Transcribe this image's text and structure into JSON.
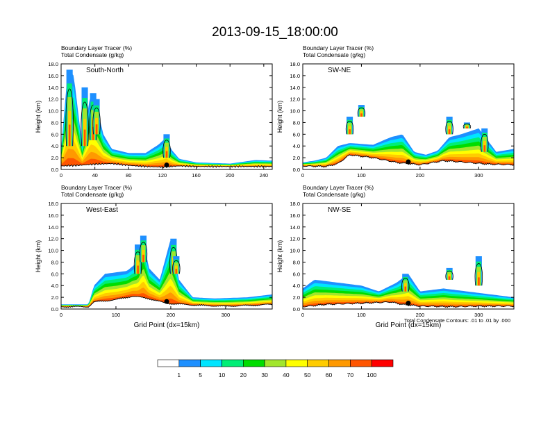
{
  "page_title": "2013-09-15_18:00:00",
  "colorbar": {
    "colors": [
      "#ffffff",
      "#1e90ff",
      "#00e5ff",
      "#00ee76",
      "#00dd00",
      "#a2e62c",
      "#ffff00",
      "#ffcc00",
      "#ff9900",
      "#ff5500",
      "#ff0000"
    ],
    "labels": [
      "1",
      "5",
      "10",
      "20",
      "30",
      "40",
      "50",
      "60",
      "70",
      "100"
    ]
  },
  "footnote": "Total Condensate Contours: .01 to .01 by .000",
  "chart_data": [
    {
      "type": "heatmap",
      "panel_label": "South-North",
      "header_line1": "Boundary Layer Tracer",
      "header_unit1": "(%)",
      "header_line2": "Total Condensate",
      "header_unit2": "(g/kg)",
      "ylabel": "Height (km)",
      "xlabel": "",
      "xlim": [
        0,
        250
      ],
      "ylim": [
        0,
        18
      ],
      "xticks": [
        "0",
        "40",
        "80",
        "120",
        "160",
        "200",
        "240"
      ],
      "yticks": [
        "0.0",
        "2.0",
        "4.0",
        "6.0",
        "8.0",
        "10.0",
        "12.0",
        "14.0",
        "16.0",
        "18.0"
      ],
      "terrain_km": [
        [
          0,
          0.6
        ],
        [
          20,
          0.7
        ],
        [
          40,
          0.9
        ],
        [
          60,
          1.0
        ],
        [
          80,
          0.7
        ],
        [
          100,
          0.5
        ],
        [
          120,
          0.4
        ],
        [
          140,
          0.6
        ],
        [
          160,
          0.5
        ],
        [
          200,
          0.5
        ],
        [
          250,
          0.5
        ]
      ],
      "top_colored_km": [
        [
          0,
          3.5
        ],
        [
          8,
          17
        ],
        [
          15,
          16
        ],
        [
          25,
          4
        ],
        [
          35,
          13
        ],
        [
          40,
          12
        ],
        [
          50,
          6
        ],
        [
          60,
          3.5
        ],
        [
          80,
          2.8
        ],
        [
          100,
          2.8
        ],
        [
          115,
          4.2
        ],
        [
          125,
          5.5
        ],
        [
          130,
          3.5
        ],
        [
          140,
          1.8
        ],
        [
          160,
          1.2
        ],
        [
          200,
          1.0
        ],
        [
          230,
          1.6
        ],
        [
          250,
          1.5
        ]
      ],
      "plumes": [
        [
          10,
          4,
          17
        ],
        [
          28,
          4,
          14
        ],
        [
          38,
          5,
          13
        ],
        [
          42,
          6,
          12
        ],
        [
          125,
          2,
          6
        ]
      ]
    },
    {
      "type": "heatmap",
      "panel_label": "SW-NE",
      "header_line1": "Boundary Layer Tracer",
      "header_unit1": "(%)",
      "header_line2": "Total Condensate",
      "header_unit2": "(g/kg)",
      "ylabel": "Height (km)",
      "xlabel": "",
      "xlim": [
        0,
        360
      ],
      "ylim": [
        0,
        18
      ],
      "xticks": [
        "0",
        "100",
        "200",
        "300"
      ],
      "yticks": [
        "0.0",
        "2.0",
        "4.0",
        "6.0",
        "8.0",
        "10.0",
        "12.0",
        "14.0",
        "16.0",
        "18.0"
      ],
      "terrain_km": [
        [
          0,
          0.6
        ],
        [
          40,
          0.5
        ],
        [
          60,
          1.0
        ],
        [
          80,
          2.5
        ],
        [
          120,
          2.0
        ],
        [
          160,
          1.2
        ],
        [
          200,
          0.8
        ],
        [
          240,
          1.5
        ],
        [
          280,
          1.2
        ],
        [
          320,
          0.9
        ],
        [
          360,
          0.8
        ]
      ],
      "top_colored_km": [
        [
          0,
          1.2
        ],
        [
          20,
          1.5
        ],
        [
          40,
          2.0
        ],
        [
          60,
          4.0
        ],
        [
          80,
          4.5
        ],
        [
          120,
          4.2
        ],
        [
          150,
          5.5
        ],
        [
          170,
          6.0
        ],
        [
          190,
          3.0
        ],
        [
          210,
          2.5
        ],
        [
          230,
          3.2
        ],
        [
          250,
          5.5
        ],
        [
          270,
          6.0
        ],
        [
          300,
          7.0
        ],
        [
          330,
          3.0
        ],
        [
          360,
          3.5
        ]
      ],
      "plumes": [
        [
          80,
          6,
          9
        ],
        [
          100,
          9,
          11
        ],
        [
          250,
          6,
          9
        ],
        [
          280,
          7,
          8
        ],
        [
          310,
          3,
          7
        ]
      ]
    },
    {
      "type": "heatmap",
      "panel_label": "West-East",
      "header_line1": "Boundary Layer Tracer",
      "header_unit1": "(%)",
      "header_line2": "Total Condensate",
      "header_unit2": "(g/kg)",
      "ylabel": "Height (km)",
      "xlabel": "Grid Point (dx=15km)",
      "xlim": [
        0,
        385
      ],
      "ylim": [
        0,
        18
      ],
      "xticks": [
        "0",
        "100",
        "200",
        "300"
      ],
      "yticks": [
        "0.0",
        "2.0",
        "4.0",
        "6.0",
        "8.0",
        "10.0",
        "12.0",
        "14.0",
        "16.0",
        "18.0"
      ],
      "terrain_km": [
        [
          0,
          0.4
        ],
        [
          50,
          0.4
        ],
        [
          60,
          1.2
        ],
        [
          100,
          1.6
        ],
        [
          130,
          2.2
        ],
        [
          160,
          1.8
        ],
        [
          190,
          1.0
        ],
        [
          220,
          0.8
        ],
        [
          260,
          0.6
        ],
        [
          300,
          0.5
        ],
        [
          340,
          0.6
        ],
        [
          385,
          0.8
        ]
      ],
      "top_colored_km": [
        [
          0,
          0.8
        ],
        [
          50,
          0.8
        ],
        [
          60,
          4.0
        ],
        [
          80,
          6.0
        ],
        [
          120,
          6.5
        ],
        [
          140,
          8.0
        ],
        [
          150,
          12.0
        ],
        [
          160,
          7.0
        ],
        [
          180,
          5.0
        ],
        [
          200,
          12.0
        ],
        [
          215,
          5.0
        ],
        [
          240,
          2.0
        ],
        [
          280,
          1.8
        ],
        [
          340,
          2.0
        ],
        [
          385,
          2.5
        ]
      ],
      "plumes": [
        [
          140,
          6,
          11
        ],
        [
          150,
          8,
          12.5
        ],
        [
          205,
          6,
          12
        ],
        [
          210,
          6,
          9
        ]
      ]
    },
    {
      "type": "heatmap",
      "panel_label": "NW-SE",
      "header_line1": "Boundary Layer Tracer",
      "header_unit1": "(%)",
      "header_line2": "Total Condensate",
      "header_unit2": "(g/kg)",
      "ylabel": "Height (km)",
      "xlabel": "Grid Point (dx=15km)",
      "xlim": [
        0,
        360
      ],
      "ylim": [
        0,
        18
      ],
      "xticks": [
        "0",
        "100",
        "200",
        "300"
      ],
      "yticks": [
        "0.0",
        "2.0",
        "4.0",
        "6.0",
        "8.0",
        "10.0",
        "12.0",
        "14.0",
        "16.0",
        "18.0"
      ],
      "terrain_km": [
        [
          0,
          0.4
        ],
        [
          40,
          0.8
        ],
        [
          100,
          1.0
        ],
        [
          150,
          1.2
        ],
        [
          170,
          0.8
        ],
        [
          200,
          0.5
        ],
        [
          260,
          0.4
        ],
        [
          300,
          0.5
        ],
        [
          360,
          0.5
        ]
      ],
      "top_colored_km": [
        [
          0,
          3.5
        ],
        [
          20,
          5.0
        ],
        [
          60,
          4.5
        ],
        [
          100,
          4.0
        ],
        [
          130,
          3.0
        ],
        [
          160,
          4.5
        ],
        [
          180,
          6.0
        ],
        [
          200,
          3.0
        ],
        [
          240,
          3.5
        ],
        [
          280,
          3.0
        ],
        [
          320,
          2.5
        ],
        [
          360,
          2.0
        ]
      ],
      "plumes": [
        [
          175,
          3,
          6
        ],
        [
          300,
          4,
          9
        ],
        [
          250,
          5,
          7
        ]
      ]
    }
  ]
}
